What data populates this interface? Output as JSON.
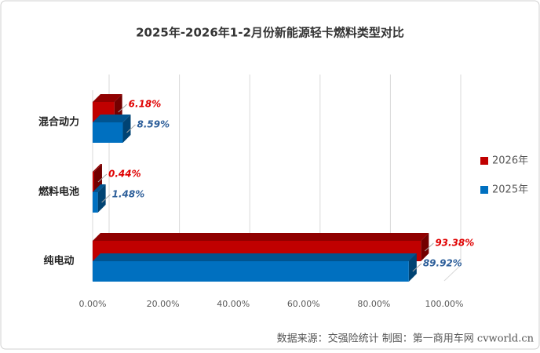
{
  "chart_data": {
    "type": "bar3d_horizontal",
    "title": "2025年-2026年1-2月份新能源轻卡燃料类型对比",
    "categories": [
      "混合动力",
      "燃料电池",
      "纯电动"
    ],
    "series": [
      {
        "name": "2026年",
        "color": "#c00000",
        "values": [
          6.18,
          0.44,
          93.38
        ],
        "value_labels": [
          "6.18%",
          "0.44%",
          "93.38%"
        ]
      },
      {
        "name": "2025年",
        "color": "#0070c0",
        "values": [
          8.59,
          1.48,
          89.92
        ],
        "value_labels": [
          "8.59%",
          "1.48%",
          "89.92%"
        ]
      }
    ],
    "xlim": [
      0,
      100
    ],
    "xticks": [
      {
        "value": 0,
        "label": "0.00%"
      },
      {
        "value": 20,
        "label": "20.00%"
      },
      {
        "value": 40,
        "label": "40.00%"
      },
      {
        "value": 60,
        "label": "60.00%"
      },
      {
        "value": 80,
        "label": "80.00%"
      },
      {
        "value": 100,
        "label": "100.00%"
      }
    ],
    "grid": true,
    "legend": "right",
    "source": "数据来源：交强险统计 制图：第一商用车网 cvworld.cn"
  }
}
